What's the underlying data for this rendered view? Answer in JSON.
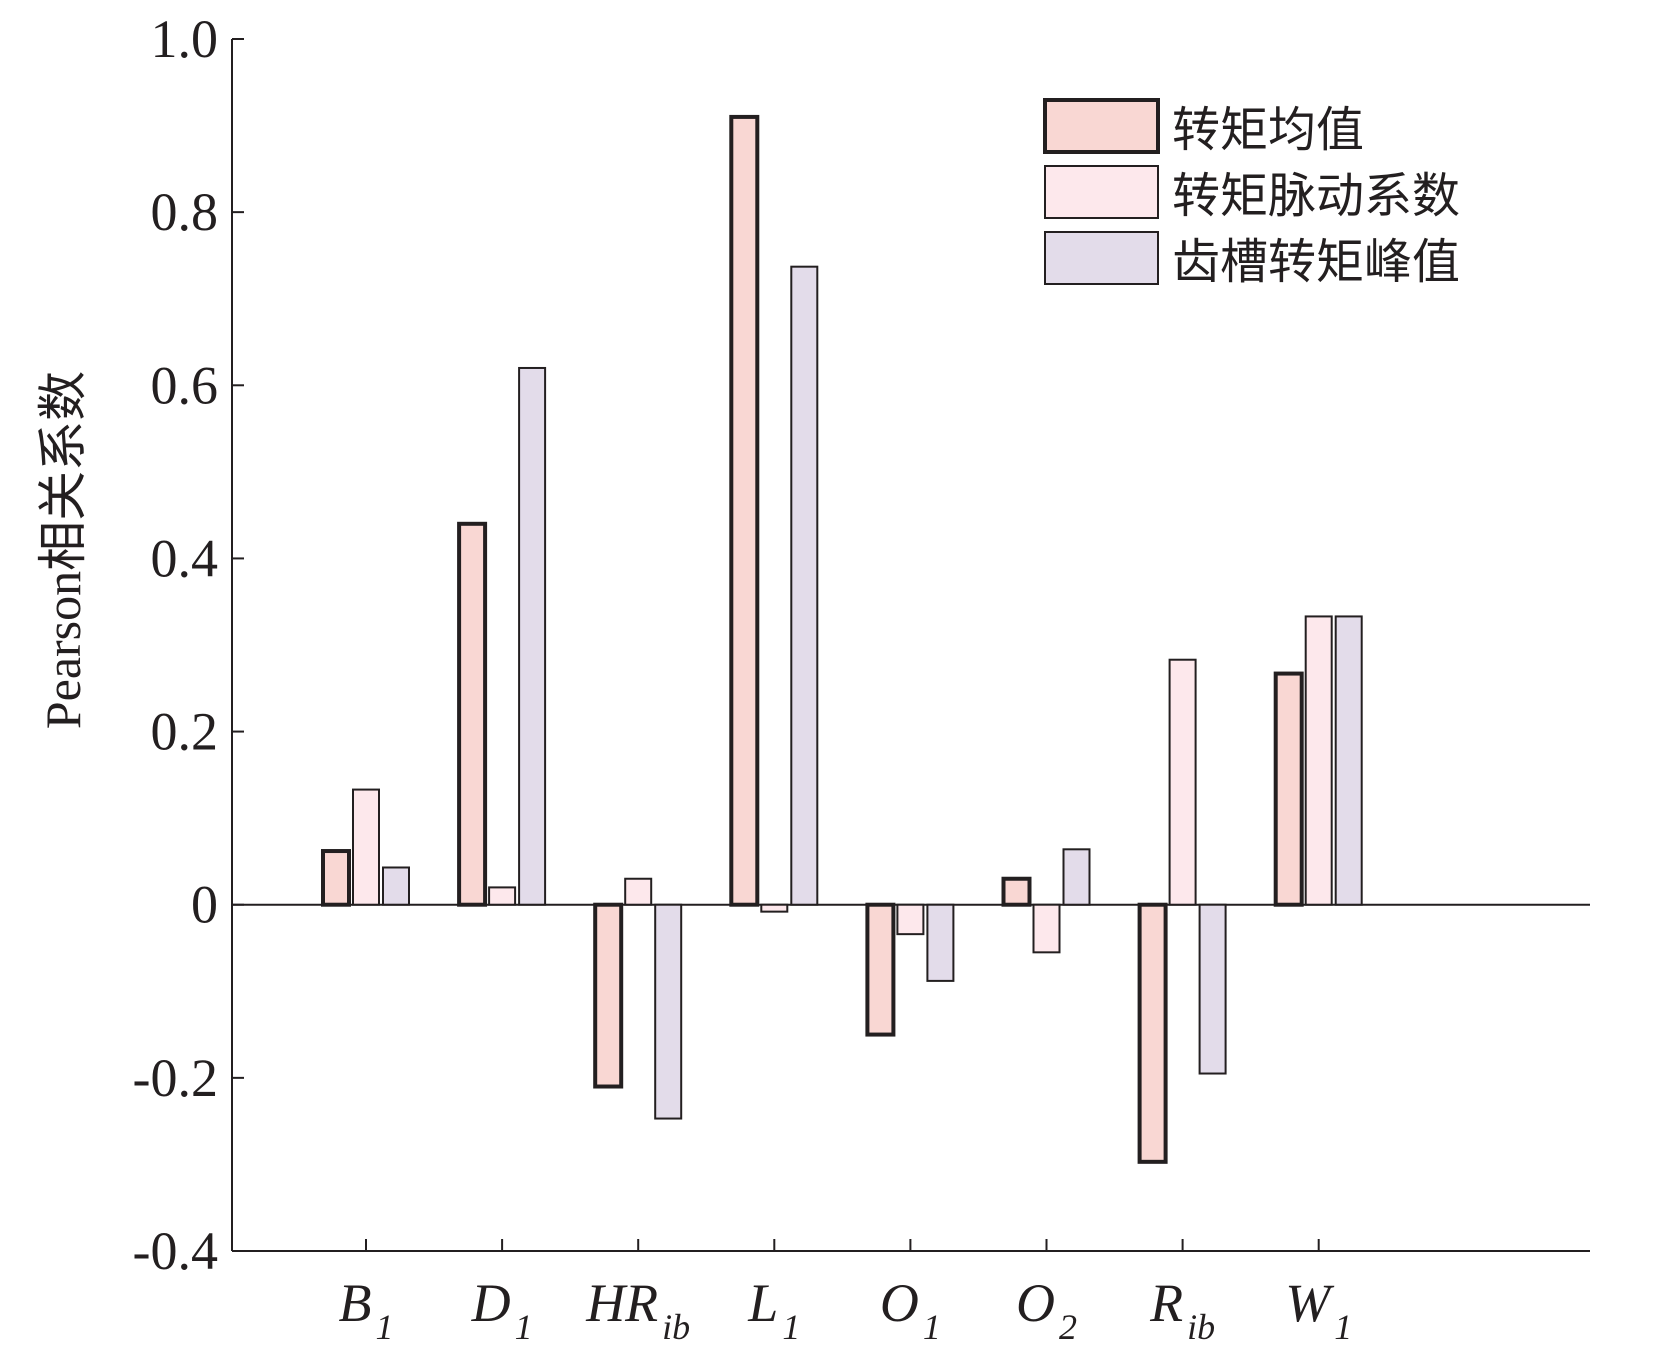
{
  "chart_data": {
    "type": "bar",
    "ylabel": "Pearson相关系数",
    "xlabel": "",
    "ylim": [
      -0.4,
      1.0
    ],
    "yticks": [
      "1.0",
      "0.8",
      "0.6",
      "0.4",
      "0.2",
      "0",
      "-0.2",
      "-0.4"
    ],
    "yticks_values": [
      1.0,
      0.8,
      0.6,
      0.4,
      0.2,
      0,
      -0.2,
      -0.4
    ],
    "categories": [
      {
        "main": "B",
        "sub": "1",
        "sub_italic": false
      },
      {
        "main": "D",
        "sub": "1",
        "sub_italic": false
      },
      {
        "main": "HR",
        "sub": "ib",
        "sub_italic": true
      },
      {
        "main": "L",
        "sub": "1",
        "sub_italic": false
      },
      {
        "main": "O",
        "sub": "1",
        "sub_italic": false
      },
      {
        "main": "O",
        "sub": "2",
        "sub_italic": false
      },
      {
        "main": "R",
        "sub": "ib",
        "sub_italic": true
      },
      {
        "main": "W",
        "sub": "1",
        "sub_italic": false
      }
    ],
    "series": [
      {
        "name": "转矩均值",
        "color": "#f9d7d3",
        "stroke": "#231f20",
        "stroke_style": "thick",
        "values": [
          0.062,
          0.44,
          -0.21,
          0.91,
          -0.15,
          0.03,
          -0.297,
          0.267
        ]
      },
      {
        "name": "转矩脉动系数",
        "color": "#fde8ec",
        "stroke": "#231f20",
        "stroke_style": "thin",
        "values": [
          0.133,
          0.02,
          0.03,
          -0.008,
          -0.034,
          -0.055,
          0.283,
          0.333
        ]
      },
      {
        "name": "齿槽转矩峰值",
        "color": "#e3dcea",
        "stroke": "#231f20",
        "stroke_style": "thin",
        "values": [
          0.043,
          0.62,
          -0.247,
          0.737,
          -0.088,
          0.064,
          -0.195,
          0.333
        ]
      }
    ],
    "legend_position": "top-right",
    "grid": false
  }
}
